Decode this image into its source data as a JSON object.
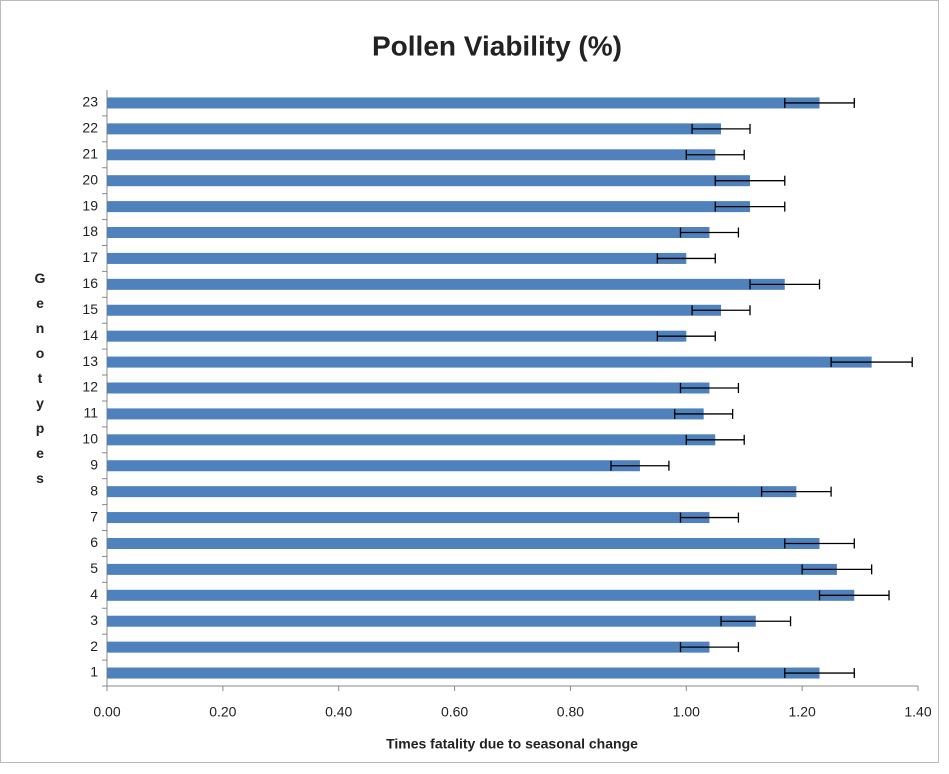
{
  "chart_data": {
    "type": "hbar",
    "title": "Pollen Viability (%)",
    "x_label": "Times fatality due to seasonal change",
    "y_label": "Genotypes",
    "categories": [
      "1",
      "2",
      "3",
      "4",
      "5",
      "6",
      "7",
      "8",
      "9",
      "10",
      "11",
      "12",
      "13",
      "14",
      "15",
      "16",
      "17",
      "18",
      "19",
      "20",
      "21",
      "22",
      "23"
    ],
    "values": [
      1.23,
      1.04,
      1.12,
      1.29,
      1.26,
      1.23,
      1.04,
      1.19,
      0.92,
      1.05,
      1.03,
      1.04,
      1.32,
      1.0,
      1.06,
      1.17,
      1.0,
      1.04,
      1.11,
      1.11,
      1.05,
      1.06,
      1.23
    ],
    "errors": [
      0.06,
      0.05,
      0.06,
      0.06,
      0.06,
      0.06,
      0.05,
      0.06,
      0.05,
      0.05,
      0.05,
      0.05,
      0.07,
      0.05,
      0.05,
      0.06,
      0.05,
      0.05,
      0.06,
      0.06,
      0.05,
      0.05,
      0.06
    ],
    "color": "#4f81bd",
    "xlim": [
      0,
      1.4
    ],
    "xticks": [
      {
        "value": 0,
        "label": "0.00"
      },
      {
        "value": 0.2,
        "label": "0.20"
      },
      {
        "value": 0.4,
        "label": "0.40"
      },
      {
        "value": 0.6,
        "label": "0.60"
      },
      {
        "value": 0.8,
        "label": "0.80"
      },
      {
        "value": 1,
        "label": "1.00"
      },
      {
        "value": 1.2,
        "label": "1.20"
      },
      {
        "value": 1.4,
        "label": "1.40"
      }
    ],
    "grid": false
  }
}
